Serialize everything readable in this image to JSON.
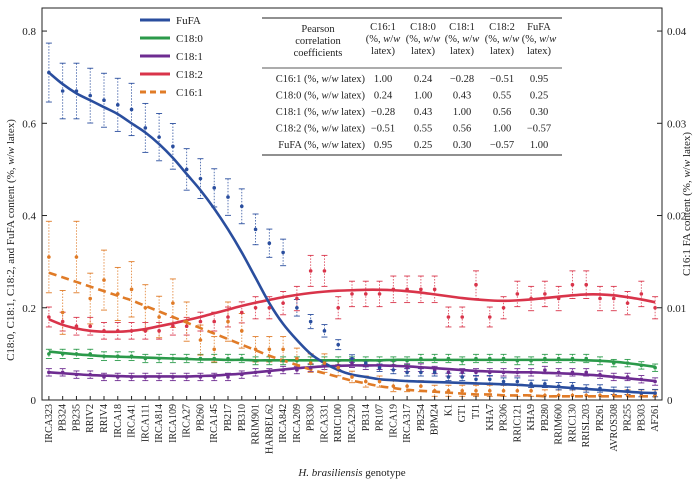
{
  "chart_data": {
    "type": "line",
    "xlabel_italic": "H. brasiliensis",
    "xlabel_rest": " genotype",
    "ylabel_left": "C18:0, C18:1, C18:2, and FuFA content (%, w/w latex)",
    "ylabel_right": "C16:1 FA content (%, w/w latex)",
    "ylim_left": [
      0,
      0.85
    ],
    "ylim_right": [
      0,
      0.0425
    ],
    "yticks_left": [
      "0",
      "0.2",
      "0.4",
      "0.6",
      "0.8"
    ],
    "yticks_left_values": [
      0,
      0.2,
      0.4,
      0.6,
      0.8
    ],
    "yticks_right": [
      "0",
      "0.01",
      "0.02",
      "0.03",
      "0.04"
    ],
    "yticks_right_values": [
      0,
      0.01,
      0.02,
      0.03,
      0.04
    ],
    "categories": [
      "IRCA323",
      "PB324",
      "PB235",
      "RRIV2",
      "RRIV4",
      "IRCA18",
      "IRCA41",
      "IRCA111",
      "IRCA814",
      "IRCA109",
      "IRCA27",
      "PB260",
      "IRCA145",
      "PB217",
      "PB310",
      "RRIM901",
      "HARBEL62",
      "IRCA842",
      "IRCA209",
      "PB330",
      "IRCA331",
      "RRIC100",
      "IRCA230",
      "PB314",
      "PR107",
      "IRCA19",
      "IRCA317",
      "PB254",
      "BPM24",
      "K1",
      "GT1",
      "TJ1",
      "KHA7",
      "PR306",
      "RRIC121",
      "KHA9",
      "PB280",
      "RRIM600",
      "RRIC130",
      "RRISL203",
      "PR261",
      "AVROS308",
      "PR255",
      "PB303",
      "AF261"
    ],
    "series": [
      {
        "name": "FuFA",
        "color": "#2a4e9e",
        "dash": "",
        "axis": "left",
        "values": [
          0.71,
          0.67,
          0.67,
          0.66,
          0.65,
          0.64,
          0.63,
          0.59,
          0.57,
          0.55,
          0.5,
          0.48,
          0.46,
          0.44,
          0.42,
          0.37,
          0.34,
          0.32,
          0.2,
          0.17,
          0.15,
          0.12,
          0.09,
          0.08,
          0.07,
          0.065,
          0.06,
          0.06,
          0.06,
          0.05,
          0.05,
          0.045,
          0.045,
          0.04,
          0.04,
          0.035,
          0.035,
          0.03,
          0.03,
          0.025,
          0.025,
          0.02,
          0.02,
          0.015,
          0.015
        ],
        "fit": [
          0.71,
          0.685,
          0.665,
          0.65,
          0.635,
          0.62,
          0.6,
          0.58,
          0.555,
          0.525,
          0.49,
          0.455,
          0.415,
          0.37,
          0.32,
          0.265,
          0.21,
          0.165,
          0.13,
          0.1,
          0.08,
          0.065,
          0.055,
          0.05,
          0.045,
          0.043,
          0.041,
          0.04,
          0.039,
          0.038,
          0.037,
          0.036,
          0.035,
          0.034,
          0.033,
          0.031,
          0.03,
          0.028,
          0.026,
          0.024,
          0.022,
          0.02,
          0.018,
          0.016,
          0.015
        ]
      },
      {
        "name": "C18:0",
        "color": "#2b9a4a",
        "dash": "",
        "axis": "left",
        "values": [
          0.1,
          0.1,
          0.1,
          0.1,
          0.095,
          0.095,
          0.095,
          0.09,
          0.09,
          0.09,
          0.09,
          0.09,
          0.09,
          0.09,
          0.09,
          0.085,
          0.085,
          0.085,
          0.085,
          0.085,
          0.085,
          0.085,
          0.085,
          0.085,
          0.085,
          0.085,
          0.085,
          0.09,
          0.09,
          0.09,
          0.085,
          0.09,
          0.09,
          0.09,
          0.085,
          0.085,
          0.09,
          0.09,
          0.09,
          0.09,
          0.085,
          0.08,
          0.08,
          0.075,
          0.07
        ],
        "fit": [
          0.105,
          0.102,
          0.099,
          0.097,
          0.095,
          0.094,
          0.093,
          0.092,
          0.091,
          0.09,
          0.089,
          0.088,
          0.088,
          0.087,
          0.087,
          0.086,
          0.086,
          0.086,
          0.086,
          0.086,
          0.086,
          0.086,
          0.086,
          0.086,
          0.086,
          0.087,
          0.087,
          0.087,
          0.087,
          0.087,
          0.087,
          0.087,
          0.087,
          0.087,
          0.087,
          0.087,
          0.087,
          0.087,
          0.087,
          0.086,
          0.085,
          0.083,
          0.08,
          0.076,
          0.072
        ]
      },
      {
        "name": "C18:1",
        "color": "#6e2c91",
        "dash": "",
        "axis": "left",
        "values": [
          0.06,
          0.06,
          0.055,
          0.055,
          0.05,
          0.05,
          0.05,
          0.05,
          0.05,
          0.05,
          0.05,
          0.05,
          0.05,
          0.05,
          0.055,
          0.06,
          0.06,
          0.065,
          0.065,
          0.07,
          0.075,
          0.075,
          0.08,
          0.075,
          0.075,
          0.075,
          0.07,
          0.07,
          0.065,
          0.06,
          0.06,
          0.06,
          0.06,
          0.06,
          0.06,
          0.06,
          0.065,
          0.06,
          0.06,
          0.06,
          0.055,
          0.05,
          0.05,
          0.045,
          0.04
        ],
        "fit": [
          0.06,
          0.058,
          0.056,
          0.054,
          0.053,
          0.052,
          0.051,
          0.051,
          0.051,
          0.051,
          0.051,
          0.052,
          0.053,
          0.055,
          0.057,
          0.06,
          0.063,
          0.066,
          0.069,
          0.071,
          0.073,
          0.074,
          0.075,
          0.075,
          0.075,
          0.074,
          0.073,
          0.071,
          0.069,
          0.067,
          0.065,
          0.063,
          0.062,
          0.061,
          0.06,
          0.06,
          0.059,
          0.058,
          0.057,
          0.055,
          0.053,
          0.05,
          0.047,
          0.044,
          0.041
        ]
      },
      {
        "name": "C18:2",
        "color": "#d9344a",
        "dash": "",
        "axis": "left",
        "values": [
          0.18,
          0.17,
          0.16,
          0.16,
          0.15,
          0.15,
          0.15,
          0.15,
          0.15,
          0.16,
          0.16,
          0.17,
          0.17,
          0.18,
          0.19,
          0.2,
          0.2,
          0.21,
          0.22,
          0.28,
          0.28,
          0.2,
          0.23,
          0.23,
          0.23,
          0.24,
          0.24,
          0.24,
          0.24,
          0.18,
          0.18,
          0.25,
          0.18,
          0.2,
          0.23,
          0.22,
          0.23,
          0.22,
          0.25,
          0.25,
          0.22,
          0.22,
          0.21,
          0.23,
          0.2
        ],
        "fit": [
          0.175,
          0.163,
          0.155,
          0.15,
          0.148,
          0.148,
          0.15,
          0.154,
          0.16,
          0.166,
          0.173,
          0.18,
          0.188,
          0.196,
          0.204,
          0.211,
          0.217,
          0.223,
          0.228,
          0.232,
          0.235,
          0.237,
          0.238,
          0.239,
          0.239,
          0.238,
          0.236,
          0.233,
          0.229,
          0.225,
          0.221,
          0.218,
          0.216,
          0.215,
          0.216,
          0.218,
          0.221,
          0.224,
          0.227,
          0.229,
          0.229,
          0.227,
          0.223,
          0.218,
          0.212
        ]
      },
      {
        "name": "C16:1",
        "color": "#e07b27",
        "dash": "8,5",
        "axis": "right",
        "values": [
          0.0155,
          0.0095,
          0.0155,
          0.011,
          0.013,
          0.0115,
          0.012,
          0.01,
          0.009,
          0.0105,
          0.0085,
          0.0065,
          0.0055,
          0.0085,
          0.0075,
          0.0055,
          0.0055,
          0.0055,
          0.0045,
          0.004,
          0.004,
          0.0035,
          0.0025,
          0.002,
          0.002,
          0.0015,
          0.0015,
          0.0015,
          0.001,
          0.001,
          0.001,
          0.001,
          0.001,
          0.001,
          0.001,
          0.001,
          0.0005,
          0.0005,
          0.0005,
          0.0005,
          0.0005,
          0.0005,
          0.0005,
          0.0005,
          0.0005
        ],
        "fit": [
          0.0138,
          0.0133,
          0.0128,
          0.0123,
          0.0118,
          0.0113,
          0.0108,
          0.0102,
          0.0096,
          0.009,
          0.0084,
          0.0078,
          0.0072,
          0.0066,
          0.006,
          0.0054,
          0.0048,
          0.0043,
          0.0038,
          0.0033,
          0.0029,
          0.0025,
          0.0021,
          0.0018,
          0.0015,
          0.0013,
          0.0011,
          0.001,
          0.0009,
          0.0008,
          0.0007,
          0.0006,
          0.0006,
          0.0005,
          0.0005,
          0.0005,
          0.0004,
          0.0004,
          0.0004,
          0.0004,
          0.0004,
          0.0004,
          0.0004,
          0.0004,
          0.0004
        ]
      }
    ],
    "correlation_table": {
      "corner": [
        "Pearson",
        "correlation",
        "coefficients"
      ],
      "columns": [
        {
          "label": "C16:1",
          "unit": "(%, w/w",
          "tail": "latex)"
        },
        {
          "label": "C18:0",
          "unit": "(%, w/w",
          "tail": "latex)"
        },
        {
          "label": "C18:1",
          "unit": "(%, w/w",
          "tail": "latex)"
        },
        {
          "label": "C18:2",
          "unit": "(%, w/w",
          "tail": "latex)"
        },
        {
          "label": "FuFA",
          "unit": "(%, w/w",
          "tail": "latex)"
        }
      ],
      "rows": [
        {
          "label": "C16:1 (%, w/w latex)",
          "values": [
            "1.00",
            "0.24",
            "−0.28",
            "−0.51",
            "0.95"
          ]
        },
        {
          "label": "C18:0 (%, w/w latex)",
          "values": [
            "0.24",
            "1.00",
            "0.43",
            "0.55",
            "0.25"
          ]
        },
        {
          "label": "C18:1 (%, w/w latex)",
          "values": [
            "−0.28",
            "0.43",
            "1.00",
            "0.56",
            "0.30"
          ]
        },
        {
          "label": "C18:2 (%, w/w latex)",
          "values": [
            "−0.51",
            "0.55",
            "0.56",
            "1.00",
            "−0.57"
          ]
        },
        {
          "label": "FuFA (%, w/w latex)",
          "values": [
            "0.95",
            "0.25",
            "0.30",
            "−0.57",
            "1.00"
          ]
        }
      ]
    }
  }
}
